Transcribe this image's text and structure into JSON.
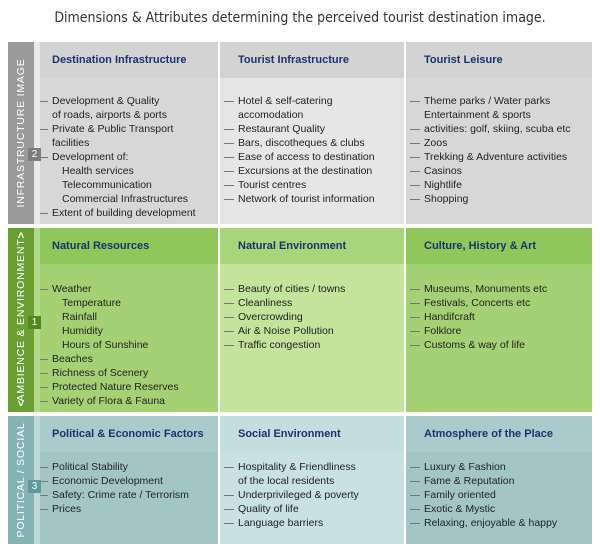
{
  "title": "Dimensions & Attributes determining the perceived tourist destination image.",
  "bands": [
    {
      "side_label": "INFRASTRUCTURE IMAGE",
      "number": "2",
      "columns": [
        {
          "header": "Destination Infrastructure",
          "items": [
            {
              "text": "Development & Quality",
              "marker": true,
              "indent": false
            },
            {
              "text": "of roads, airports & ports",
              "marker": false,
              "indent": false
            },
            {
              "text": "Private & Public Transport",
              "marker": true,
              "indent": false
            },
            {
              "text": "facilities",
              "marker": false,
              "indent": false
            },
            {
              "text": "Development of:",
              "marker": true,
              "indent": false
            },
            {
              "text": "Health services",
              "marker": false,
              "indent": true
            },
            {
              "text": "Telecommunication",
              "marker": false,
              "indent": true
            },
            {
              "text": "Commercial Infrastructures",
              "marker": false,
              "indent": true
            },
            {
              "text": "Extent of building development",
              "marker": true,
              "indent": false
            }
          ]
        },
        {
          "header": "Tourist Infrastructure",
          "items": [
            {
              "text": "Hotel & self-catering",
              "marker": true,
              "indent": false
            },
            {
              "text": "accomodation",
              "marker": false,
              "indent": false
            },
            {
              "text": "Restaurant Quality",
              "marker": true,
              "indent": false
            },
            {
              "text": "Bars, discotheques & clubs",
              "marker": true,
              "indent": false
            },
            {
              "text": "Ease of access to destination",
              "marker": true,
              "indent": false
            },
            {
              "text": "Excursions at the destination",
              "marker": true,
              "indent": false
            },
            {
              "text": "Tourist centres",
              "marker": true,
              "indent": false
            },
            {
              "text": "Network of tourist information",
              "marker": true,
              "indent": false
            }
          ]
        },
        {
          "header": "Tourist Leisure",
          "items": [
            {
              "text": "Theme parks / Water parks",
              "marker": true,
              "indent": false
            },
            {
              "text": "Entertainment & sports",
              "marker": false,
              "indent": false
            },
            {
              "text": "activities: golf, skiing, scuba etc",
              "marker": true,
              "indent": false
            },
            {
              "text": "Zoos",
              "marker": true,
              "indent": false
            },
            {
              "text": "Trekking & Adventure activities",
              "marker": true,
              "indent": false
            },
            {
              "text": "Casinos",
              "marker": true,
              "indent": false
            },
            {
              "text": "Nightlife",
              "marker": true,
              "indent": false
            },
            {
              "text": "Shopping",
              "marker": true,
              "indent": false
            }
          ]
        }
      ]
    },
    {
      "side_label": "AMBIENCE & ENVIRONMENT",
      "number": "1",
      "columns": [
        {
          "header": "Natural Resources",
          "items": [
            {
              "text": "Weather",
              "marker": true,
              "indent": false
            },
            {
              "text": "Temperature",
              "marker": false,
              "indent": true
            },
            {
              "text": "Rainfall",
              "marker": false,
              "indent": true
            },
            {
              "text": "Humidity",
              "marker": false,
              "indent": true
            },
            {
              "text": "Hours of Sunshine",
              "marker": false,
              "indent": true
            },
            {
              "text": "Beaches",
              "marker": true,
              "indent": false
            },
            {
              "text": "Richness of Scenery",
              "marker": true,
              "indent": false
            },
            {
              "text": "Protected Nature Reserves",
              "marker": true,
              "indent": false
            },
            {
              "text": "Variety of Flora & Fauna",
              "marker": true,
              "indent": false
            }
          ]
        },
        {
          "header": "Natural Environment",
          "items": [
            {
              "text": "Beauty of cities / towns",
              "marker": true,
              "indent": false
            },
            {
              "text": "Cleanliness",
              "marker": true,
              "indent": false
            },
            {
              "text": "Overcrowding",
              "marker": true,
              "indent": false
            },
            {
              "text": "Air & Noise Pollution",
              "marker": true,
              "indent": false
            },
            {
              "text": "Traffic congestion",
              "marker": true,
              "indent": false
            }
          ]
        },
        {
          "header": "Culture, History & Art",
          "items": [
            {
              "text": "Museums, Monuments etc",
              "marker": true,
              "indent": false
            },
            {
              "text": "Festivals, Concerts etc",
              "marker": true,
              "indent": false
            },
            {
              "text": "Handifcraft",
              "marker": true,
              "indent": false
            },
            {
              "text": "Folklore",
              "marker": true,
              "indent": false
            },
            {
              "text": "Customs & way of life",
              "marker": true,
              "indent": false
            }
          ]
        }
      ]
    },
    {
      "side_label": "POLITICAL / SOCIAL",
      "number": "3",
      "columns": [
        {
          "header": "Political & Economic Factors",
          "items": [
            {
              "text": "Political Stability",
              "marker": true,
              "indent": false
            },
            {
              "text": "Economic Development",
              "marker": true,
              "indent": false
            },
            {
              "text": "Safety: Crime rate / Terrorism",
              "marker": true,
              "indent": false
            },
            {
              "text": "Prices",
              "marker": true,
              "indent": false
            }
          ]
        },
        {
          "header": "Social Environment",
          "items": [
            {
              "text": "Hospitality & Friendliness",
              "marker": true,
              "indent": false
            },
            {
              "text": "of the local residents",
              "marker": false,
              "indent": false
            },
            {
              "text": "Underprivileged & poverty",
              "marker": true,
              "indent": false
            },
            {
              "text": "Quality of life",
              "marker": true,
              "indent": false
            },
            {
              "text": "Language barriers",
              "marker": true,
              "indent": false
            }
          ]
        },
        {
          "header": "Atmosphere of the Place",
          "items": [
            {
              "text": "Luxury & Fashion",
              "marker": true,
              "indent": false
            },
            {
              "text": "Fame & Reputation",
              "marker": true,
              "indent": false
            },
            {
              "text": "Family oriented",
              "marker": true,
              "indent": false
            },
            {
              "text": "Exotic & Mystic",
              "marker": true,
              "indent": false
            },
            {
              "text": "Relaxing, enjoyable & happy",
              "marker": true,
              "indent": false
            }
          ]
        }
      ]
    }
  ]
}
